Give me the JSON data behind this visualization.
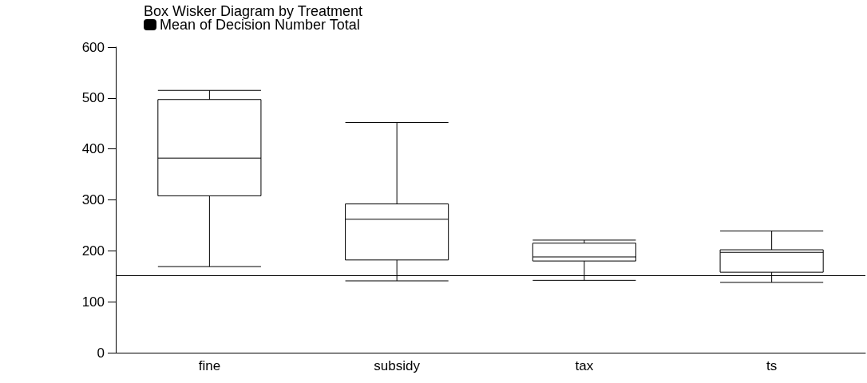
{
  "chart_data": {
    "type": "box",
    "title": "Box Wisker Diagram by Treatment",
    "categories": [
      "fine",
      "subsidy",
      "tax",
      "ts"
    ],
    "series": [
      {
        "name": "Mean of Decision Number Total",
        "color": "#000000",
        "boxes": [
          {
            "low": 169,
            "q1": 308,
            "median": 382,
            "q3": 497,
            "high": 515
          },
          {
            "low": 141,
            "q1": 182,
            "median": 262,
            "q3": 292,
            "high": 452
          },
          {
            "low": 142,
            "q1": 180,
            "median": 188,
            "q3": 215,
            "high": 221
          },
          {
            "low": 138,
            "q1": 158,
            "median": 197,
            "q3": 202,
            "high": 239
          }
        ]
      }
    ],
    "ylim": [
      0,
      600
    ],
    "yticks": [
      0,
      100,
      200,
      300,
      400,
      500,
      600
    ],
    "ref_lines": [
      {
        "axis": "y",
        "value": 151
      }
    ],
    "grid": false,
    "legend": "top left"
  }
}
